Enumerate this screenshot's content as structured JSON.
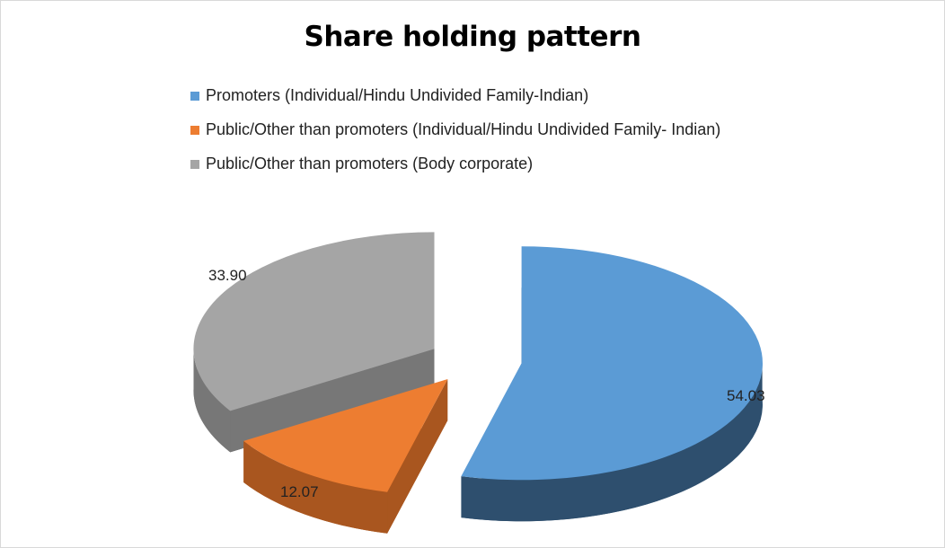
{
  "chart_data": {
    "type": "pie",
    "title": "Share holding pattern",
    "legend_position": "top",
    "slices": [
      {
        "name": "Promoters (Individual/Hindu Undivided Family-Indian)",
        "value": 54.03,
        "label": "54.03",
        "color": "#5b9bd5",
        "side_color": "#2e4f6e"
      },
      {
        "name": "Public/Other than promoters (Individual/Hindu Undivided Family- Indian)",
        "value": 12.07,
        "label": "12.07",
        "color": "#ed7d31",
        "side_color": "#a9561f"
      },
      {
        "name": "Public/Other than promoters (Body corporate)",
        "value": 33.9,
        "label": "33.90",
        "color": "#a5a5a5",
        "side_color": "#777777"
      }
    ]
  }
}
